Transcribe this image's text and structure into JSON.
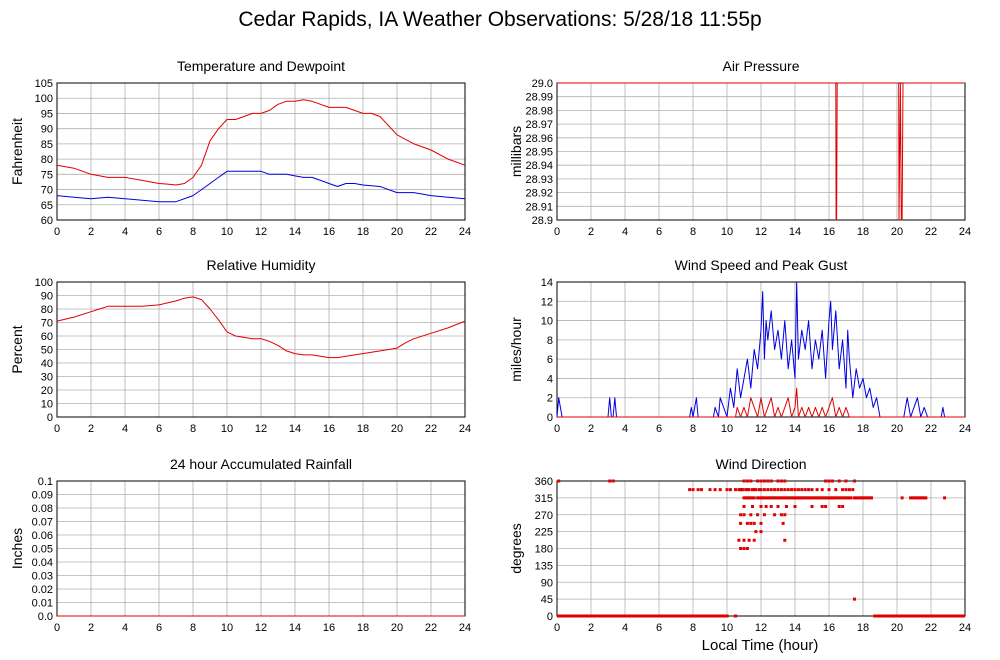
{
  "title": "Cedar Rapids, IA Weather Observations: 5/28/18 11:55p",
  "xlabel": "Local Time (hour)",
  "colors": {
    "red": "#e00000",
    "blue": "#0000e0",
    "grid": "#b0b0b0"
  },
  "chart_data": [
    {
      "id": "temp",
      "type": "line",
      "title": "Temperature and Dewpoint",
      "ylabel": "Fahrenheit",
      "xlim": [
        0,
        24
      ],
      "ylim": [
        60,
        105
      ],
      "xticks": [
        "0",
        "2",
        "4",
        "6",
        "8",
        "10",
        "12",
        "14",
        "16",
        "18",
        "20",
        "22",
        "24"
      ],
      "yticks": [
        "60",
        "65",
        "70",
        "75",
        "80",
        "85",
        "90",
        "95",
        "100",
        "105"
      ],
      "grid": true,
      "series": [
        {
          "color": "red",
          "x": [
            0,
            1,
            2,
            3,
            4,
            5,
            6,
            6.5,
            7,
            7.5,
            8,
            8.5,
            9,
            9.5,
            10,
            10.5,
            11,
            11.5,
            12,
            12.5,
            13,
            13.5,
            14,
            14.5,
            15,
            15.5,
            16,
            16.5,
            17,
            17.5,
            18,
            18.5,
            19,
            19.5,
            20,
            21,
            22,
            23,
            24
          ],
          "y": [
            78,
            77,
            75,
            74,
            74,
            73,
            72,
            71.8,
            71.5,
            72,
            74,
            78,
            86,
            90,
            93,
            93,
            94,
            95,
            95,
            96,
            98,
            99,
            99,
            99.5,
            99,
            98,
            97,
            97,
            97,
            96,
            95,
            95,
            94,
            91,
            88,
            85,
            83,
            80,
            78
          ]
        },
        {
          "color": "blue",
          "x": [
            0,
            1,
            2,
            3,
            4,
            5,
            6,
            7,
            8,
            8.5,
            9,
            9.5,
            10,
            10.5,
            11,
            12,
            12.5,
            13,
            13.5,
            14,
            14.5,
            15,
            15.5,
            16,
            16.5,
            17,
            17.5,
            18,
            19,
            20,
            21,
            22,
            23,
            24
          ],
          "y": [
            68,
            67.5,
            67,
            67.5,
            67,
            66.5,
            66,
            66,
            68,
            70,
            72,
            74,
            76,
            76,
            76,
            76,
            75,
            75,
            75,
            74.5,
            74,
            74,
            73,
            72,
            71,
            72,
            72,
            71.5,
            71,
            69,
            69,
            68,
            67.5,
            67
          ]
        }
      ]
    },
    {
      "id": "pressure",
      "type": "line",
      "title": "Air Pressure",
      "ylabel": "millibars",
      "xlim": [
        0,
        24
      ],
      "ylim": [
        28.9,
        29.0
      ],
      "xticks": [
        "0",
        "2",
        "4",
        "6",
        "8",
        "10",
        "12",
        "14",
        "16",
        "18",
        "20",
        "22",
        "24"
      ],
      "yticks": [
        "28.9",
        "28.91",
        "28.92",
        "28.93",
        "28.94",
        "28.95",
        "28.96",
        "28.97",
        "28.98",
        "28.99",
        "29.0"
      ],
      "grid": true,
      "series": [
        {
          "color": "red",
          "x": [
            0,
            16.4,
            16.42,
            16.45,
            16.48,
            20.1,
            20.12,
            20.2,
            20.25,
            20.3,
            20.35,
            20.4,
            24
          ],
          "y": [
            29.0,
            29.0,
            28.9,
            28.9,
            29.0,
            29.0,
            28.9,
            29.0,
            28.9,
            28.9,
            29.0,
            29.0,
            29.0
          ]
        }
      ]
    },
    {
      "id": "humidity",
      "type": "line",
      "title": "Relative Humidity",
      "ylabel": "Percent",
      "xlim": [
        0,
        24
      ],
      "ylim": [
        0,
        100
      ],
      "xticks": [
        "0",
        "2",
        "4",
        "6",
        "8",
        "10",
        "12",
        "14",
        "16",
        "18",
        "20",
        "22",
        "24"
      ],
      "yticks": [
        "0",
        "10",
        "20",
        "30",
        "40",
        "50",
        "60",
        "70",
        "80",
        "90",
        "100"
      ],
      "grid": true,
      "series": [
        {
          "color": "red",
          "x": [
            0,
            1,
            2,
            2.5,
            3,
            4,
            5,
            6,
            7,
            7.5,
            8,
            8.5,
            9,
            9.5,
            10,
            10.5,
            11,
            11.5,
            12,
            12.5,
            13,
            13.5,
            14,
            14.5,
            15,
            15.5,
            16,
            16.5,
            17,
            17.5,
            18,
            19,
            20,
            20.5,
            21,
            22,
            23,
            24
          ],
          "y": [
            71,
            74,
            78,
            80,
            82,
            82,
            82,
            83,
            86,
            88,
            89,
            87,
            80,
            72,
            63,
            60,
            59,
            58,
            58,
            56,
            53,
            49,
            47,
            46,
            46,
            45,
            44,
            44,
            45,
            46,
            47,
            49,
            51,
            55,
            58,
            62,
            66,
            71
          ]
        }
      ]
    },
    {
      "id": "wind",
      "type": "line",
      "title": "Wind Speed and Peak Gust",
      "ylabel": "miles/hour",
      "xlim": [
        0,
        24
      ],
      "ylim": [
        0,
        14
      ],
      "xticks": [
        "0",
        "2",
        "4",
        "6",
        "8",
        "10",
        "12",
        "14",
        "16",
        "18",
        "20",
        "22",
        "24"
      ],
      "yticks": [
        "0",
        "2",
        "4",
        "6",
        "8",
        "10",
        "12",
        "14"
      ],
      "grid": true,
      "series": [
        {
          "color": "blue",
          "x": [
            0,
            0.1,
            0.3,
            3,
            3.1,
            3.2,
            3.3,
            3.4,
            3.5,
            7.8,
            7.9,
            8.0,
            8.2,
            8.3,
            8.4,
            9.2,
            9.3,
            9.5,
            9.6,
            10,
            10.2,
            10.4,
            10.6,
            10.8,
            11,
            11.2,
            11.4,
            11.6,
            11.8,
            12,
            12.1,
            12.2,
            12.3,
            12.4,
            12.6,
            12.8,
            13,
            13.2,
            13.4,
            13.6,
            13.8,
            14,
            14.1,
            14.2,
            14.4,
            14.6,
            14.8,
            15,
            15.2,
            15.4,
            15.6,
            15.8,
            16,
            16.1,
            16.2,
            16.4,
            16.6,
            16.8,
            17,
            17.1,
            17.2,
            17.4,
            17.6,
            17.8,
            18,
            18.2,
            18.4,
            18.6,
            18.8,
            19,
            20.4,
            20.6,
            20.8,
            21,
            21.2,
            21.4,
            21.6,
            21.8,
            22.6,
            22.7,
            22.8
          ],
          "y": [
            0,
            2,
            0,
            0,
            2,
            0,
            0,
            2,
            0,
            0,
            1,
            0,
            2,
            0,
            0,
            0,
            1,
            0,
            2,
            0,
            3,
            1,
            5,
            2,
            4,
            6,
            3,
            7,
            5,
            9,
            13,
            6,
            10,
            8,
            11,
            7,
            9,
            6,
            10,
            5,
            8,
            4,
            14,
            6,
            9,
            7,
            10,
            5,
            8,
            6,
            9,
            4,
            10,
            12,
            7,
            11,
            5,
            8,
            3,
            9,
            6,
            2,
            5,
            3,
            4,
            2,
            3,
            1,
            2,
            0,
            0,
            2,
            0,
            1,
            2,
            0,
            1,
            0,
            0,
            1,
            0
          ]
        },
        {
          "color": "red",
          "x": [
            0,
            10,
            10.5,
            10.6,
            10.8,
            11,
            11.2,
            11.4,
            11.6,
            11.8,
            12,
            12.2,
            12.4,
            12.6,
            12.8,
            13,
            13.2,
            13.4,
            13.6,
            13.8,
            14,
            14.1,
            14.2,
            14.4,
            14.6,
            14.8,
            15,
            15.2,
            15.4,
            15.6,
            15.8,
            16,
            16.2,
            16.4,
            16.6,
            16.8,
            17,
            17.2,
            17.4,
            24
          ],
          "y": [
            0,
            0,
            0,
            1,
            0,
            1,
            0,
            2,
            1,
            0,
            2,
            0,
            1,
            2,
            0,
            1,
            0,
            1,
            2,
            0,
            1,
            3,
            0,
            1,
            0,
            1,
            0,
            1,
            0,
            1,
            0,
            1,
            2,
            0,
            1,
            0,
            1,
            0,
            0,
            0
          ]
        }
      ]
    },
    {
      "id": "rain",
      "type": "line",
      "title": "24 hour Accumulated Rainfall",
      "ylabel": "Inches",
      "xlim": [
        0,
        24
      ],
      "ylim": [
        0,
        0.1
      ],
      "xticks": [
        "0",
        "2",
        "4",
        "6",
        "8",
        "10",
        "12",
        "14",
        "16",
        "18",
        "20",
        "22",
        "24"
      ],
      "yticks": [
        "0.0",
        "0.01",
        "0.02",
        "0.03",
        "0.04",
        "0.05",
        "0.06",
        "0.07",
        "0.08",
        "0.09",
        "0.1"
      ],
      "grid": true,
      "series": [
        {
          "color": "red",
          "x": [
            0,
            24
          ],
          "y": [
            0,
            0
          ]
        }
      ]
    },
    {
      "id": "direction",
      "type": "scatter",
      "title": "Wind Direction",
      "ylabel": "degrees",
      "xlim": [
        0,
        24
      ],
      "ylim": [
        0,
        360
      ],
      "xticks": [
        "0",
        "2",
        "4",
        "6",
        "8",
        "10",
        "12",
        "14",
        "16",
        "18",
        "20",
        "22",
        "24"
      ],
      "yticks": [
        "0",
        "45",
        "90",
        "135",
        "180",
        "225",
        "270",
        "315",
        "360"
      ],
      "grid": true,
      "zero_runs": [
        [
          0,
          10.1
        ],
        [
          10.4,
          10.6
        ],
        [
          18.6,
          24
        ]
      ],
      "series": [
        {
          "color": "red",
          "x": [
            0.1,
            3.1,
            3.3,
            7.8,
            8.0,
            8.3,
            8.5,
            9.0,
            9.3,
            9.6,
            10.0,
            10.2,
            10.5,
            10.7,
            10.8,
            10.9,
            11.0,
            11.1,
            11.2,
            11.3,
            11.4,
            11.5,
            11.6,
            11.8,
            11.9,
            12.0,
            12.1,
            12.2,
            12.3,
            12.4,
            12.5,
            12.6,
            12.7,
            12.8,
            12.9,
            13.0,
            13.1,
            13.2,
            13.3,
            13.4,
            13.5,
            13.6,
            13.7,
            13.8,
            13.9,
            14.0,
            14.1,
            14.2,
            14.3,
            14.4,
            14.5,
            14.6,
            14.7,
            14.8,
            14.9,
            15.0,
            15.1,
            15.2,
            15.3,
            15.4,
            15.5,
            15.6,
            15.7,
            15.8,
            15.9,
            16.0,
            16.1,
            16.2,
            16.3,
            16.4,
            16.5,
            16.6,
            16.7,
            16.8,
            16.9,
            17.0,
            17.1,
            17.2,
            17.3,
            17.5,
            17.6,
            17.7,
            17.8,
            17.9,
            18.0,
            18.1,
            18.2,
            18.3,
            18.4,
            18.5,
            20.3,
            20.8,
            20.9,
            21.0,
            21.1,
            21.2,
            21.3,
            21.4,
            21.5,
            21.6,
            21.7,
            22.8,
            10.8,
            10.9,
            11.1,
            11.2,
            11.3,
            11.5,
            11.6,
            11.7,
            11.9,
            12.0,
            12.2,
            12.4,
            12.6,
            12.8,
            13.0,
            13.2,
            13.4,
            13.6,
            13.8,
            14.0,
            14.2,
            14.4,
            14.6,
            14.8,
            15.0,
            15.3,
            15.6,
            16.0,
            16.4,
            16.8,
            17.0,
            17.2,
            17.4,
            11.0,
            11.2,
            11.4,
            11.8,
            12.0,
            12.2,
            12.4,
            12.6,
            13.0,
            13.2,
            13.4,
            15.8,
            16.0,
            16.2,
            16.6,
            17.0,
            17.5,
            11.0,
            11.5,
            12.0,
            12.3,
            12.6,
            13.0,
            13.5,
            14.0,
            15.0,
            15.6,
            15.8,
            16.6,
            16.8,
            10.8,
            11.0,
            11.4,
            11.8,
            12.2,
            12.8,
            13.2,
            13.4,
            10.8,
            11.2,
            11.4,
            11.6,
            12.0,
            13.3,
            11.7,
            12.0,
            10.7,
            11.0,
            11.3,
            11.6,
            13.4,
            10.8,
            11.0,
            11.2,
            17.5
          ],
          "y": [
            360,
            360,
            360,
            337,
            337,
            337,
            337,
            337,
            337,
            337,
            337,
            337,
            337,
            337,
            337,
            337,
            315,
            315,
            315,
            315,
            315,
            315,
            315,
            315,
            315,
            315,
            315,
            315,
            315,
            315,
            315,
            315,
            315,
            315,
            315,
            315,
            315,
            315,
            315,
            315,
            315,
            315,
            315,
            315,
            315,
            315,
            315,
            315,
            315,
            315,
            315,
            315,
            315,
            315,
            315,
            315,
            315,
            315,
            315,
            315,
            315,
            315,
            315,
            315,
            315,
            315,
            315,
            315,
            315,
            315,
            315,
            315,
            315,
            315,
            315,
            315,
            315,
            315,
            315,
            315,
            315,
            315,
            315,
            315,
            315,
            315,
            315,
            315,
            315,
            315,
            315,
            315,
            315,
            315,
            315,
            315,
            315,
            315,
            315,
            315,
            315,
            315,
            337,
            337,
            337,
            337,
            337,
            337,
            337,
            337,
            337,
            337,
            337,
            337,
            337,
            337,
            337,
            337,
            337,
            337,
            337,
            337,
            337,
            337,
            337,
            337,
            337,
            337,
            337,
            337,
            337,
            337,
            337,
            337,
            337,
            360,
            360,
            360,
            360,
            360,
            360,
            360,
            360,
            360,
            360,
            360,
            360,
            360,
            360,
            360,
            360,
            360,
            292,
            292,
            292,
            292,
            292,
            292,
            292,
            292,
            292,
            292,
            292,
            292,
            292,
            270,
            270,
            270,
            270,
            270,
            270,
            270,
            270,
            247,
            247,
            247,
            247,
            247,
            247,
            225,
            225,
            202,
            202,
            202,
            202,
            202,
            180,
            180,
            180,
            45
          ]
        }
      ]
    }
  ]
}
